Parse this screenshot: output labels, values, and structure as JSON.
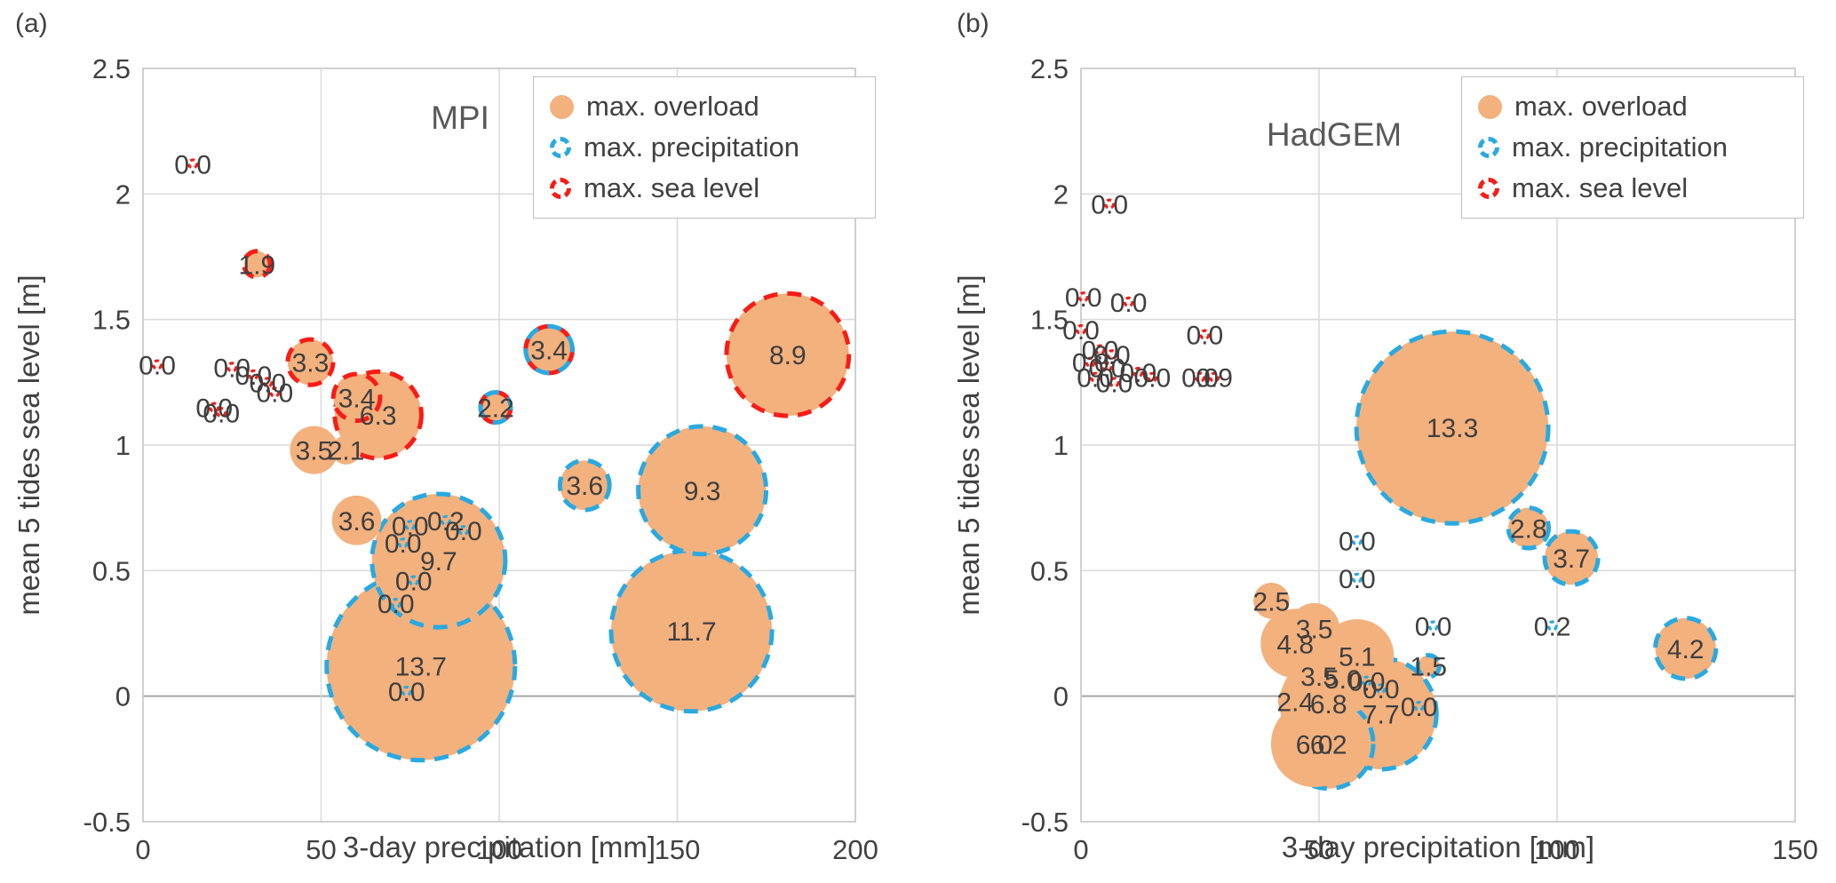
{
  "page": {
    "panel_a_tag": "(a)",
    "panel_b_tag": "(b)"
  },
  "axes": {
    "xlabel": "3-day precipitation [mm]",
    "ylabel": "mean 5 tides sea level [m]"
  },
  "legend": {
    "items": [
      {
        "label": "max. overload",
        "marker": "filled-orange-circle",
        "color": "#F3B17E"
      },
      {
        "label": "max. precipitation",
        "marker": "dashed-blue-circle",
        "color": "#29A9E1"
      },
      {
        "label": "max. sea level",
        "marker": "dashed-red-circle",
        "color": "#F81C17"
      }
    ]
  },
  "colors": {
    "bubble_fill": "#F3B17E",
    "precip_ring": "#29A9E1",
    "sea_ring": "#F81C17",
    "grid": "#D9D9D9",
    "zero_line": "#A6A6A6",
    "frame": "#C6C6C6",
    "tick_text": "#404040",
    "label_text": "#3F3F3F"
  },
  "chart_data": [
    {
      "panel": "a",
      "type": "scatter",
      "title": "MPI",
      "xlabel": "3-day precipitation [mm]",
      "ylabel": "mean 5 tides sea level [m]",
      "xlim": [
        0,
        200
      ],
      "ylim": [
        -0.5,
        2.5
      ],
      "xticks": [
        "0",
        "50",
        "100",
        "150",
        "200"
      ],
      "yticks": [
        "-0.5",
        "0",
        "0.5",
        "1",
        "1.5",
        "2",
        "2.5"
      ],
      "grid": true,
      "legend_position": "top-right-inside",
      "size_encoding": "bubble radius proportional to labelled value; ring color marks event type (blue = max. precipitation, red = max. sea level, plain orange = max. overload)",
      "points": [
        {
          "x": 14,
          "y": 2.12,
          "v": "0.0",
          "ring": "sea"
        },
        {
          "x": 32,
          "y": 1.72,
          "v": "1.9",
          "ring": "sea"
        },
        {
          "x": 4,
          "y": 1.32,
          "v": "0.0",
          "ring": "sea"
        },
        {
          "x": 25,
          "y": 1.31,
          "v": "0.0",
          "ring": "sea"
        },
        {
          "x": 31,
          "y": 1.28,
          "v": "0.0",
          "ring": "sea"
        },
        {
          "x": 35,
          "y": 1.25,
          "v": "0.0",
          "ring": "sea"
        },
        {
          "x": 37,
          "y": 1.21,
          "v": "0.0",
          "ring": "sea"
        },
        {
          "x": 20,
          "y": 1.15,
          "v": "0.0",
          "ring": "sea"
        },
        {
          "x": 22,
          "y": 1.13,
          "v": "0.0",
          "ring": "sea"
        },
        {
          "x": 47,
          "y": 1.33,
          "v": "3.3",
          "ring": "sea"
        },
        {
          "x": 60,
          "y": 1.19,
          "v": "3.4",
          "ring": "sea"
        },
        {
          "x": 66,
          "y": 1.12,
          "v": "6.3",
          "ring": "sea"
        },
        {
          "x": 48,
          "y": 0.98,
          "v": "3.5",
          "ring": "none"
        },
        {
          "x": 57,
          "y": 0.98,
          "v": "2.1",
          "ring": "none"
        },
        {
          "x": 99,
          "y": 1.15,
          "v": "2.2",
          "ring": "sea+precip"
        },
        {
          "x": 114,
          "y": 1.38,
          "v": "3.4",
          "ring": "sea+precip"
        },
        {
          "x": 181,
          "y": 1.36,
          "v": "8.9",
          "ring": "sea"
        },
        {
          "x": 124,
          "y": 0.84,
          "v": "3.6",
          "ring": "precip"
        },
        {
          "x": 157,
          "y": 0.82,
          "v": "9.3",
          "ring": "precip"
        },
        {
          "x": 154,
          "y": 0.26,
          "v": "11.7",
          "ring": "precip"
        },
        {
          "x": 60,
          "y": 0.7,
          "v": "3.6",
          "ring": "none"
        },
        {
          "x": 75,
          "y": 0.68,
          "v": "0.0",
          "ring": "precip"
        },
        {
          "x": 85,
          "y": 0.7,
          "v": "0.2",
          "ring": "precip"
        },
        {
          "x": 90,
          "y": 0.66,
          "v": "0.0",
          "ring": "precip"
        },
        {
          "x": 73,
          "y": 0.61,
          "v": "0.0",
          "ring": "precip"
        },
        {
          "x": 83,
          "y": 0.54,
          "v": "9.7",
          "ring": "precip"
        },
        {
          "x": 76,
          "y": 0.46,
          "v": "0.0",
          "ring": "precip"
        },
        {
          "x": 71,
          "y": 0.37,
          "v": "0.0",
          "ring": "precip"
        },
        {
          "x": 78,
          "y": 0.12,
          "v": "13.7",
          "ring": "precip"
        },
        {
          "x": 74,
          "y": 0.02,
          "v": "0.0",
          "ring": "precip"
        }
      ]
    },
    {
      "panel": "b",
      "type": "scatter",
      "title": "HadGEM",
      "xlabel": "3-day precipitation [mm]",
      "ylabel": "mean 5 tides sea level [m]",
      "xlim": [
        0,
        150
      ],
      "ylim": [
        -0.5,
        2.5
      ],
      "xticks": [
        "0",
        "50",
        "100",
        "150"
      ],
      "yticks": [
        "-0.5",
        "0",
        "0.5",
        "1",
        "1.5",
        "2",
        "2.5"
      ],
      "grid": true,
      "legend_position": "top-right-inside",
      "size_encoding": "bubble radius proportional to labelled value; ring color marks event type (blue = max. precipitation, red = max. sea level, plain orange = max. overload)",
      "points": [
        {
          "x": 6,
          "y": 1.96,
          "v": "0.0",
          "ring": "sea"
        },
        {
          "x": 0.5,
          "y": 1.59,
          "v": "0.0",
          "ring": "sea"
        },
        {
          "x": 10,
          "y": 1.57,
          "v": "0.0",
          "ring": "sea"
        },
        {
          "x": 0,
          "y": 1.46,
          "v": "0.0",
          "ring": "sea"
        },
        {
          "x": 26,
          "y": 1.44,
          "v": "0.0",
          "ring": "sea"
        },
        {
          "x": 4,
          "y": 1.38,
          "v": "0.0",
          "ring": "sea"
        },
        {
          "x": 6.5,
          "y": 1.36,
          "v": "0.0",
          "ring": "sea"
        },
        {
          "x": 2,
          "y": 1.33,
          "v": "0.0",
          "ring": "sea"
        },
        {
          "x": 5.5,
          "y": 1.31,
          "v": "0.0",
          "ring": "sea"
        },
        {
          "x": 12,
          "y": 1.29,
          "v": "0.0",
          "ring": "sea"
        },
        {
          "x": 3,
          "y": 1.27,
          "v": "0.0",
          "ring": "sea"
        },
        {
          "x": 7,
          "y": 1.25,
          "v": "0.0",
          "ring": "sea"
        },
        {
          "x": 15,
          "y": 1.27,
          "v": "0.0",
          "ring": "sea"
        },
        {
          "x": 25,
          "y": 1.27,
          "v": "0.0",
          "ring": "sea"
        },
        {
          "x": 28,
          "y": 1.27,
          "v": "0.9",
          "ring": "sea"
        },
        {
          "x": 78,
          "y": 1.07,
          "v": "13.3",
          "ring": "precip"
        },
        {
          "x": 94,
          "y": 0.67,
          "v": "2.8",
          "ring": "precip"
        },
        {
          "x": 103,
          "y": 0.55,
          "v": "3.7",
          "ring": "precip"
        },
        {
          "x": 58,
          "y": 0.62,
          "v": "0.0",
          "ring": "precip"
        },
        {
          "x": 58,
          "y": 0.47,
          "v": "0.0",
          "ring": "precip"
        },
        {
          "x": 40,
          "y": 0.38,
          "v": "2.5",
          "ring": "none"
        },
        {
          "x": 49,
          "y": 0.27,
          "v": "3.5",
          "ring": "none"
        },
        {
          "x": 45,
          "y": 0.21,
          "v": "4.8",
          "ring": "none"
        },
        {
          "x": 58,
          "y": 0.16,
          "v": "5.1",
          "ring": "none"
        },
        {
          "x": 50,
          "y": 0.08,
          "v": "3.5",
          "ring": "none"
        },
        {
          "x": 55,
          "y": 0.07,
          "v": "5.0",
          "ring": "none"
        },
        {
          "x": 60,
          "y": 0.06,
          "v": "0.0",
          "ring": "precip"
        },
        {
          "x": 63,
          "y": 0.03,
          "v": "0.0",
          "ring": "precip"
        },
        {
          "x": 45,
          "y": -0.02,
          "v": "2.4",
          "ring": "none"
        },
        {
          "x": 52,
          "y": -0.03,
          "v": "6.8",
          "ring": "none"
        },
        {
          "x": 63,
          "y": -0.07,
          "v": "7.7",
          "ring": "precip"
        },
        {
          "x": 71,
          "y": -0.04,
          "v": "0.0",
          "ring": "precip"
        },
        {
          "x": 49,
          "y": -0.19,
          "v": "6.0",
          "ring": "none"
        },
        {
          "x": 52,
          "y": -0.19,
          "v": "6.2",
          "ring": "precip"
        },
        {
          "x": 73,
          "y": 0.12,
          "v": "1.5",
          "ring": "precip"
        },
        {
          "x": 74,
          "y": 0.28,
          "v": "0.0",
          "ring": "precip"
        },
        {
          "x": 99,
          "y": 0.28,
          "v": "0.2",
          "ring": "precip"
        },
        {
          "x": 127,
          "y": 0.19,
          "v": "4.2",
          "ring": "precip"
        }
      ]
    }
  ]
}
